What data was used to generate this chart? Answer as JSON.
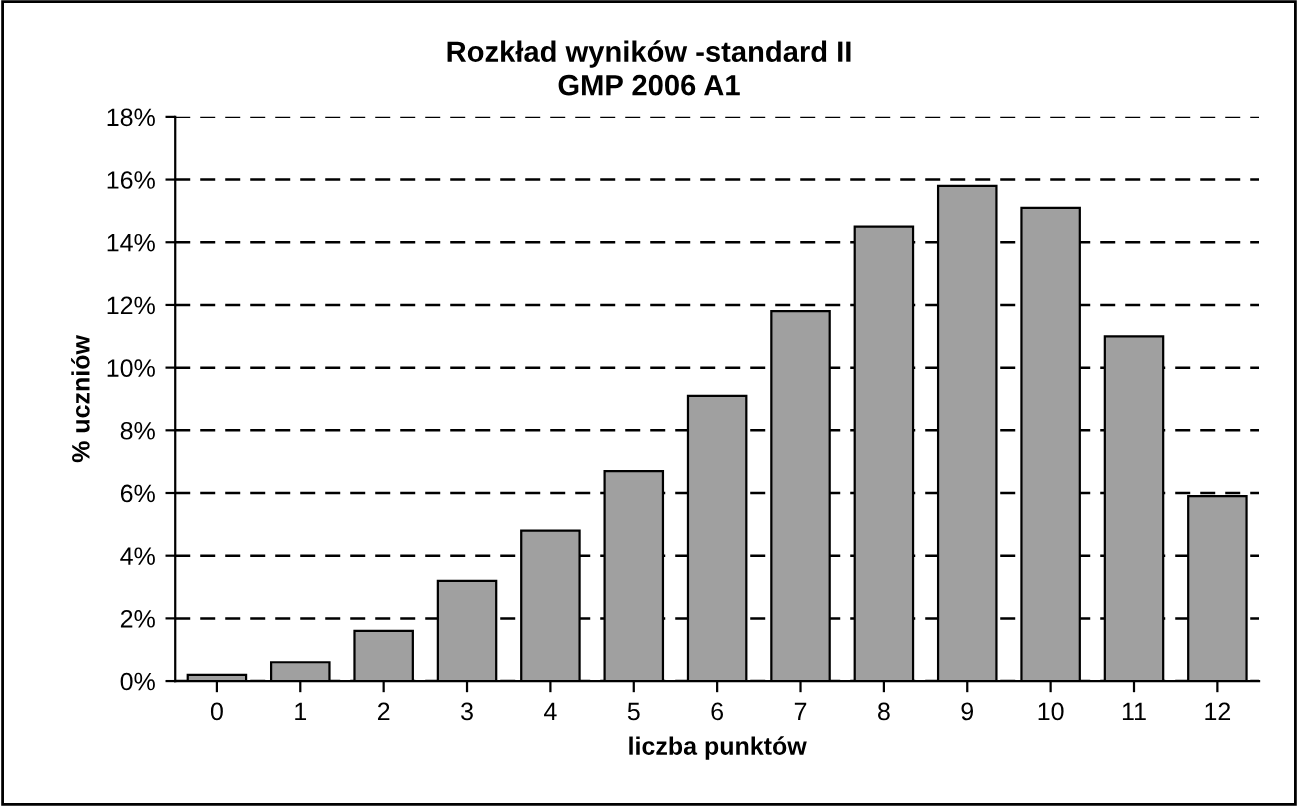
{
  "chart_data": {
    "type": "bar",
    "title": "Rozkład wyników -standard II\nGMP 2006 A1",
    "xlabel": "liczba punktów",
    "ylabel": "% uczniów",
    "categories": [
      "0",
      "1",
      "2",
      "3",
      "4",
      "5",
      "6",
      "7",
      "8",
      "9",
      "10",
      "11",
      "12"
    ],
    "values": [
      0.2,
      0.6,
      1.6,
      3.2,
      4.8,
      6.7,
      9.1,
      11.8,
      14.5,
      15.8,
      15.1,
      11.0,
      5.9
    ],
    "color": "#a0a0a0",
    "ylim": [
      0,
      18
    ],
    "yticks": [
      {
        "value": 0,
        "label": "0%"
      },
      {
        "value": 2,
        "label": "2%"
      },
      {
        "value": 4,
        "label": "4%"
      },
      {
        "value": 6,
        "label": "6%"
      },
      {
        "value": 8,
        "label": "8%"
      },
      {
        "value": 10,
        "label": "10%"
      },
      {
        "value": 12,
        "label": "12%"
      },
      {
        "value": 14,
        "label": "14%"
      },
      {
        "value": 16,
        "label": "16%"
      },
      {
        "value": 18,
        "label": "18%"
      }
    ],
    "grid": "y",
    "line_style": "dashed",
    "legend": false
  }
}
